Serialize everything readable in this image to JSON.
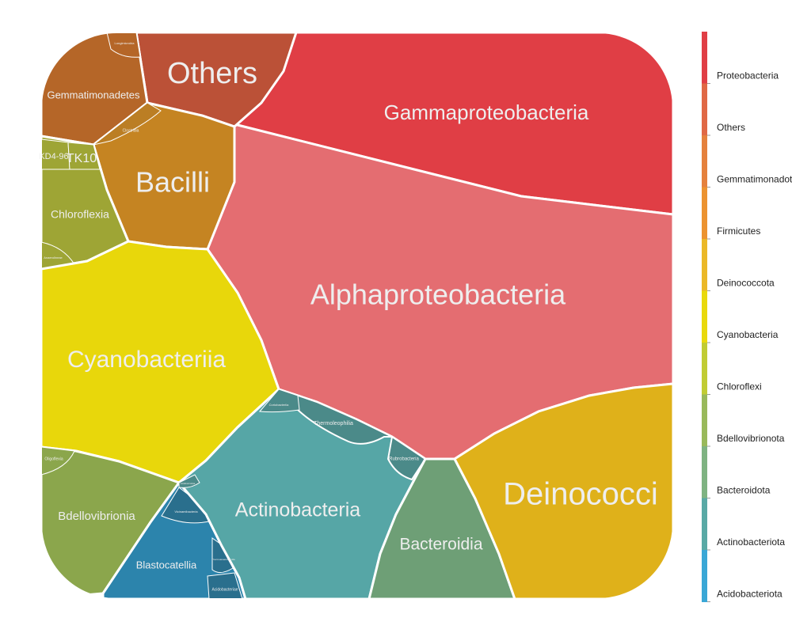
{
  "chart_data": {
    "type": "voronoi treemap",
    "title": "",
    "legend_position": "right",
    "classes": [
      {
        "name": "Gammaproteobacteria",
        "phylum": "Proteobacteria",
        "color": "#e03e45"
      },
      {
        "name": "Alphaproteobacteria",
        "phylum": "Proteobacteria",
        "color": "#e46d71"
      },
      {
        "name": "Others",
        "phylum": "Others",
        "color": "#bb5137"
      },
      {
        "name": "Gemmatimonadetes",
        "phylum": "Gemmatimonadota",
        "color": "#b56628"
      },
      {
        "name": "Longimicrobia",
        "phylum": "Gemmatimonadota",
        "color": "#b56628"
      },
      {
        "name": "Bacilli",
        "phylum": "Firmicutes",
        "color": "#c58422"
      },
      {
        "name": "Clostridia",
        "phylum": "Firmicutes",
        "color": "#bb7e24"
      },
      {
        "name": "Deinococci",
        "phylum": "Deinococcota",
        "color": "#dfb11a"
      },
      {
        "name": "Cyanobacteriia",
        "phylum": "Cyanobacteria",
        "color": "#e8d70b"
      },
      {
        "name": "Chloroflexia",
        "phylum": "Chloroflexi",
        "color": "#9ea535"
      },
      {
        "name": "KD4-96",
        "phylum": "Chloroflexi",
        "color": "#9ea535"
      },
      {
        "name": "TK10",
        "phylum": "Chloroflexi",
        "color": "#9ea535"
      },
      {
        "name": "Anaerolineae",
        "phylum": "Chloroflexi",
        "color": "#9ea535"
      },
      {
        "name": "Bdellovibrionia",
        "phylum": "Bdellovibrionota",
        "color": "#8ba64c"
      },
      {
        "name": "Oligoflexia",
        "phylum": "Bdellovibrionota",
        "color": "#8ba64c"
      },
      {
        "name": "Bacteroidia",
        "phylum": "Bacteroidota",
        "color": "#6e9f76"
      },
      {
        "name": "Actinobacteria",
        "phylum": "Actinobacteriota",
        "color": "#56a6a6"
      },
      {
        "name": "Thermoleophilia",
        "phylum": "Actinobacteriota",
        "color": "#4b8a89"
      },
      {
        "name": "Rubrobacteria",
        "phylum": "Actinobacteriota",
        "color": "#4b8a89"
      },
      {
        "name": "Coriobacteriia",
        "phylum": "Actinobacteriota",
        "color": "#4b8a89"
      },
      {
        "name": "Acidimicrobiia",
        "phylum": "Actinobacteriota",
        "color": "#4b8a89"
      },
      {
        "name": "Blastocatellia",
        "phylum": "Acidobacteriota",
        "color": "#2c84ac"
      },
      {
        "name": "Vicinamibacteria",
        "phylum": "Acidobacteriota",
        "color": "#2a6f8d"
      },
      {
        "name": "Thermoanaerobaculia",
        "phylum": "Acidobacteriota",
        "color": "#2a6f8d"
      },
      {
        "name": "Acidobacteriae",
        "phylum": "Acidobacteriota",
        "color": "#2a6f8d"
      }
    ],
    "legend": {
      "entries": [
        "Proteobacteria",
        "Others",
        "Gemmatimonadota",
        "Firmicutes",
        "Deinococcota",
        "Cyanobacteria",
        "Chloroflexi",
        "Bdellovibrionota",
        "Bacteroidota",
        "Actinobacteriota",
        "Acidobacteriota"
      ],
      "colors": [
        "#e03e45",
        "#e06845",
        "#e5813d",
        "#ec9330",
        "#ebb827",
        "#e9d90c",
        "#c1cc33",
        "#99b95b",
        "#7fb382",
        "#59a9a5",
        "#3aa7d6"
      ]
    }
  }
}
